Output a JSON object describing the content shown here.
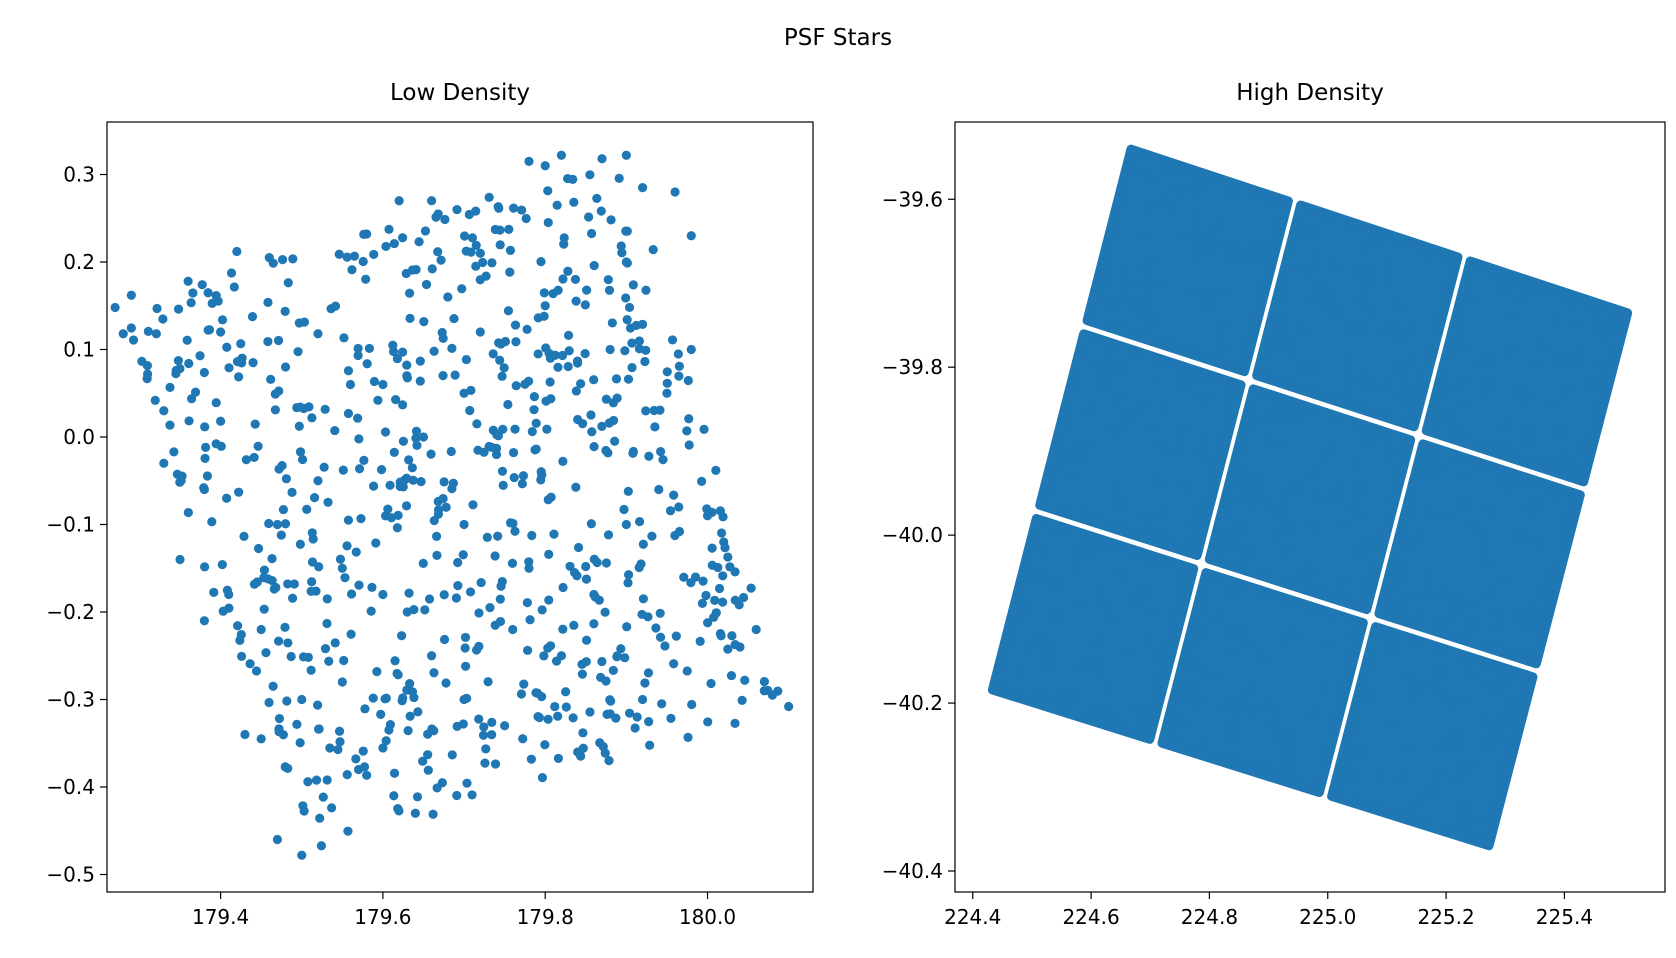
{
  "figure": {
    "suptitle": "PSF Stars"
  },
  "chart_data": [
    {
      "type": "scatter",
      "title": "Low Density",
      "xlabel": "",
      "ylabel": "",
      "xlim": [
        179.26,
        180.13
      ],
      "ylim": [
        -0.52,
        0.36
      ],
      "xticks": [
        "179.4",
        "179.6",
        "179.8",
        "180.0"
      ],
      "xtick_values": [
        179.4,
        179.6,
        179.8,
        180.0
      ],
      "yticks": [
        "0.3",
        "0.2",
        "0.1",
        "0.0",
        "−0.1",
        "−0.2",
        "−0.3",
        "−0.4",
        "−0.5"
      ],
      "ytick_values": [
        0.3,
        0.2,
        0.1,
        0.0,
        -0.1,
        -0.2,
        -0.3,
        -0.4,
        -0.5
      ],
      "color": "#1f77b4",
      "footprint_corners": [
        [
          179.27,
          0.15
        ],
        [
          179.9,
          0.32
        ],
        [
          180.1,
          -0.31
        ],
        [
          179.5,
          -0.48
        ]
      ],
      "points": [
        [
          179.27,
          0.148
        ],
        [
          179.29,
          0.162
        ],
        [
          179.28,
          0.118
        ],
        [
          179.31,
          0.072
        ],
        [
          179.33,
          0.03
        ],
        [
          179.36,
          0.178
        ],
        [
          179.38,
          -0.06
        ],
        [
          179.4,
          0.018
        ],
        [
          179.42,
          0.212
        ],
        [
          179.44,
          0.085
        ],
        [
          179.46,
          0.205
        ],
        [
          179.45,
          -0.345
        ],
        [
          179.47,
          -0.46
        ],
        [
          179.5,
          -0.478
        ],
        [
          179.52,
          0.118
        ],
        [
          179.55,
          -0.28
        ],
        [
          179.58,
          0.232
        ],
        [
          179.6,
          -0.18
        ],
        [
          179.62,
          0.27
        ],
        [
          179.64,
          -0.43
        ],
        [
          179.66,
          0.27
        ],
        [
          179.68,
          0.16
        ],
        [
          179.7,
          -0.1
        ],
        [
          179.72,
          0.21
        ],
        [
          179.75,
          -0.33
        ],
        [
          179.78,
          0.315
        ],
        [
          179.8,
          0.31
        ],
        [
          179.82,
          0.322
        ],
        [
          179.84,
          -0.36
        ],
        [
          179.87,
          0.318
        ],
        [
          179.9,
          0.322
        ],
        [
          179.92,
          0.285
        ],
        [
          179.94,
          -0.06
        ],
        [
          179.96,
          0.28
        ],
        [
          179.98,
          0.23
        ],
        [
          180.0,
          -0.09
        ],
        [
          180.02,
          -0.12
        ],
        [
          180.04,
          -0.24
        ],
        [
          180.06,
          -0.22
        ],
        [
          180.07,
          -0.29
        ],
        [
          180.08,
          -0.295
        ],
        [
          180.1,
          -0.308
        ],
        [
          179.35,
          -0.14
        ],
        [
          179.38,
          -0.21
        ],
        [
          179.41,
          -0.18
        ],
        [
          179.43,
          -0.34
        ],
        [
          179.47,
          -0.1
        ],
        [
          179.52,
          -0.05
        ],
        [
          179.56,
          0.06
        ],
        [
          179.6,
          0.06
        ],
        [
          179.65,
          0.0
        ],
        [
          179.7,
          0.05
        ],
        [
          179.74,
          -0.02
        ],
        [
          179.78,
          -0.15
        ],
        [
          179.82,
          -0.25
        ],
        [
          179.86,
          -0.18
        ],
        [
          179.9,
          -0.1
        ],
        [
          179.95,
          0.05
        ],
        [
          179.98,
          0.1
        ],
        [
          179.88,
          0.1
        ],
        [
          179.8,
          0.15
        ],
        [
          179.72,
          0.12
        ],
        [
          179.63,
          -0.2
        ],
        [
          179.57,
          -0.38
        ],
        [
          179.66,
          -0.25
        ],
        [
          179.7,
          -0.3
        ],
        [
          179.76,
          -0.22
        ],
        [
          179.84,
          0.02
        ],
        [
          179.92,
          -0.3
        ],
        [
          179.5,
          -0.3
        ],
        [
          179.45,
          -0.22
        ],
        [
          179.55,
          -0.15
        ],
        [
          179.48,
          0.08
        ],
        [
          179.4,
          0.12
        ],
        [
          179.33,
          -0.03
        ],
        [
          179.9,
          0.2
        ]
      ]
    },
    {
      "type": "scatter",
      "title": "High Density",
      "xlabel": "",
      "ylabel": "",
      "xlim": [
        224.37,
        225.57
      ],
      "ylim": [
        -40.425,
        -39.508
      ],
      "xticks": [
        "224.4",
        "224.6",
        "224.8",
        "225.0",
        "225.2",
        "225.4"
      ],
      "xtick_values": [
        224.4,
        224.6,
        224.8,
        225.0,
        225.2,
        225.4
      ],
      "yticks": [
        "−39.6",
        "−39.8",
        "−40.0",
        "−40.2",
        "−40.4"
      ],
      "ytick_values": [
        -39.6,
        -39.8,
        -40.0,
        -40.2,
        -40.4
      ],
      "color": "#1f77b4",
      "footprint_corners": [
        [
          224.66,
          -39.53
        ],
        [
          225.52,
          -39.73
        ],
        [
          225.28,
          -40.38
        ],
        [
          224.42,
          -40.19
        ]
      ],
      "detector_grid": [
        3,
        3
      ]
    }
  ]
}
